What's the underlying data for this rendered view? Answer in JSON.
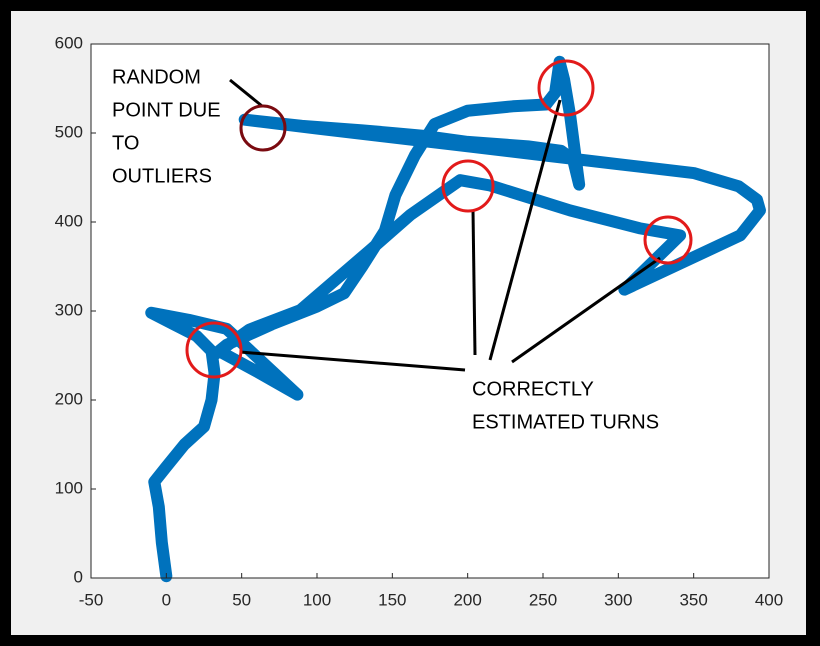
{
  "chart_data": {
    "type": "line",
    "x": [
      0,
      -3,
      -5,
      -8,
      0,
      12,
      25,
      30,
      32,
      30,
      20,
      5,
      -10,
      15,
      40,
      87,
      60,
      35,
      40,
      70,
      100,
      118,
      130,
      145,
      152,
      165,
      178,
      200,
      230,
      252,
      258,
      261,
      264,
      268,
      274,
      270,
      262,
      240,
      200,
      170,
      130,
      90,
      52,
      100,
      150,
      200,
      250,
      300,
      350,
      380,
      392,
      394,
      381,
      304,
      341,
      314,
      268,
      215,
      195,
      162,
      135,
      89,
      55,
      32
    ],
    "values": [
      2,
      40,
      80,
      108,
      125,
      150,
      170,
      200,
      230,
      255,
      272,
      285,
      298,
      290,
      280,
      206,
      232,
      255,
      262,
      285,
      305,
      320,
      350,
      390,
      430,
      475,
      510,
      525,
      530,
      532,
      545,
      580,
      560,
      520,
      442,
      470,
      480,
      485,
      490,
      497,
      503,
      508,
      515,
      505,
      495,
      485,
      475,
      465,
      455,
      440,
      425,
      413,
      385,
      324,
      385,
      393,
      413,
      441,
      447,
      408,
      368,
      301,
      279,
      251
    ],
    "color": "#0072bd",
    "xlim": [
      -50,
      400
    ],
    "xticks": [
      -50,
      0,
      50,
      100,
      150,
      200,
      250,
      300,
      350,
      400
    ],
    "ylim": [
      0,
      600
    ],
    "yticks": [
      0,
      100,
      200,
      300,
      400,
      500,
      600
    ],
    "grid": false,
    "annotations": [
      {
        "text": [
          "RANDOM",
          "POINT DUE",
          "TO",
          "OUTLIERS"
        ]
      },
      {
        "text": [
          "CORRECTLY",
          "ESTIMATED TURNS"
        ]
      }
    ]
  }
}
